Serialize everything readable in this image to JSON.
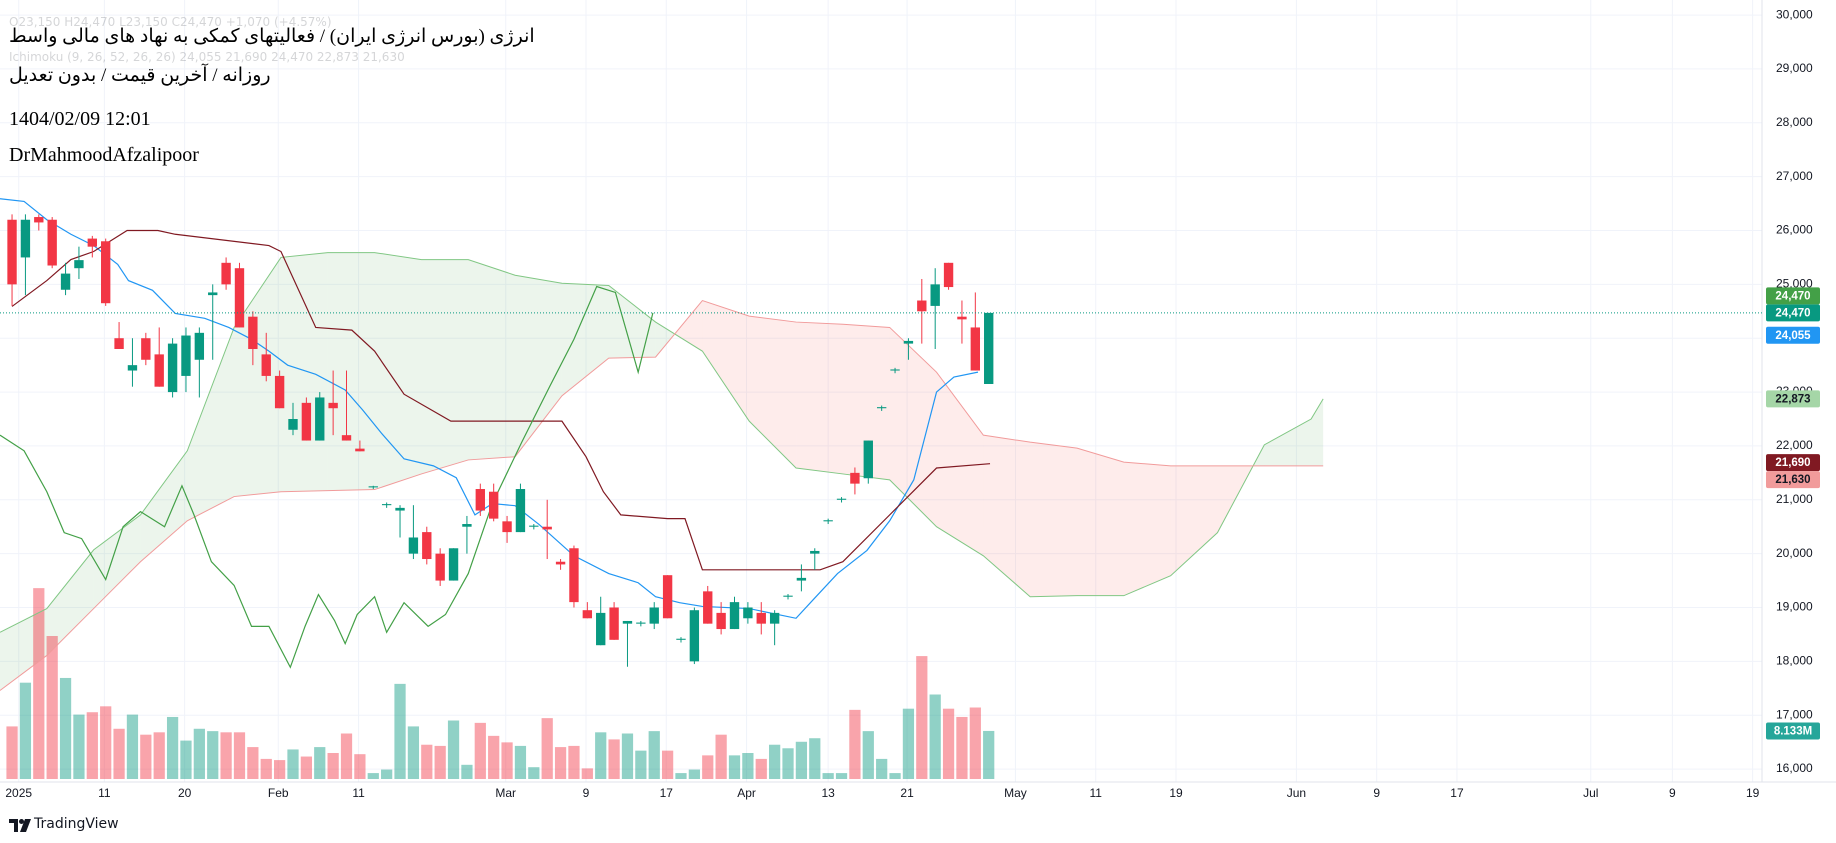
{
  "header": {
    "ghost_ohlc": "O23,150 H24,470 L23,150 C24,470 +1,070 (+4.57%)",
    "ghost_ichimoku": "Ichimoku (9, 26, 52, 26, 26) 24,055 21,690 24,470 22,873 21,630",
    "title": "انرژی (بورس انرژی ایران) / فعالیتهای کمکی به نهاد های مالی واسط",
    "subtitle": "روزانه / آخرین قیمت / بدون تعدیل",
    "datetime": "1404/02/09 12:01",
    "author": "DrMahmoodAfzalipoor"
  },
  "chart_data": {
    "type": "candlestick",
    "xlim": [
      -0.9,
      130.8
    ],
    "xticks": [
      {
        "value": 0.5,
        "label": "2025"
      },
      {
        "value": 6.9,
        "label": "11"
      },
      {
        "value": 12.9,
        "label": "20"
      },
      {
        "value": 19.9,
        "label": "Feb"
      },
      {
        "value": 25.9,
        "label": "11"
      },
      {
        "value": 36.9,
        "label": "Mar"
      },
      {
        "value": 42.9,
        "label": "9"
      },
      {
        "value": 48.9,
        "label": "17"
      },
      {
        "value": 54.9,
        "label": "Apr"
      },
      {
        "value": 61.0,
        "label": "13"
      },
      {
        "value": 66.9,
        "label": "21"
      },
      {
        "value": 75.0,
        "label": "May"
      },
      {
        "value": 81.0,
        "label": "11"
      },
      {
        "value": 87.0,
        "label": "19"
      },
      {
        "value": 96.0,
        "label": "Jun"
      },
      {
        "value": 102.0,
        "label": "9"
      },
      {
        "value": 108.0,
        "label": "17"
      },
      {
        "value": 118.0,
        "label": "Jul"
      },
      {
        "value": 124.1,
        "label": "9"
      },
      {
        "value": 130.1,
        "label": "19"
      }
    ],
    "ylim": [
      15760,
      30280
    ],
    "yticks": [
      {
        "value": 16000,
        "label": "16,000"
      },
      {
        "value": 17000,
        "label": "17,000"
      },
      {
        "value": 18000,
        "label": "18,000"
      },
      {
        "value": 19000,
        "label": "19,000"
      },
      {
        "value": 20000,
        "label": "20,000"
      },
      {
        "value": 21000,
        "label": "21,000"
      },
      {
        "value": 22000,
        "label": "22,000"
      },
      {
        "value": 23000,
        "label": "23,000"
      },
      {
        "value": 24000,
        "label": "24,000"
      },
      {
        "value": 25000,
        "label": "25,000"
      },
      {
        "value": 26000,
        "label": "26,000"
      },
      {
        "value": 27000,
        "label": "27,000"
      },
      {
        "value": 28000,
        "label": "28,000"
      },
      {
        "value": 29000,
        "label": "29,000"
      },
      {
        "value": 30000,
        "label": "30,000"
      }
    ],
    "grid": true,
    "candles": {
      "up_color": "#089981",
      "down_color": "#f23645",
      "open": [
        26200,
        25500,
        26250,
        26200,
        24900,
        25300,
        25850,
        25800,
        24000,
        23400,
        24000,
        23700,
        23000,
        23300,
        23600,
        24800,
        25400,
        25300,
        24400,
        23700,
        23300,
        22300,
        22800,
        22100,
        22800,
        22200,
        21950,
        21230,
        20900,
        20800,
        20000,
        20400,
        20000,
        19500,
        20500,
        21200,
        21150,
        20600,
        20400,
        20500,
        20500,
        19850,
        20100,
        18950,
        18300,
        19000,
        18700,
        18700,
        18700,
        19600,
        18400,
        18000,
        19300,
        18900,
        18600,
        18800,
        18900,
        18700,
        19200,
        19500,
        20000,
        20600,
        21000,
        21500,
        21400,
        22700,
        23400,
        23900,
        24700,
        24600,
        25400,
        24400,
        24200,
        23150
      ],
      "high": [
        26300,
        26300,
        26300,
        26250,
        25400,
        25700,
        25900,
        25850,
        24300,
        24000,
        24100,
        24200,
        24000,
        24200,
        24200,
        25000,
        25500,
        25400,
        24500,
        24100,
        23400,
        22800,
        22900,
        23000,
        23400,
        23400,
        22100,
        21260,
        20950,
        20900,
        20900,
        20500,
        20100,
        20100,
        20700,
        21300,
        21300,
        20700,
        21300,
        20550,
        21000,
        19900,
        20150,
        19100,
        19200,
        19100,
        18750,
        18750,
        19100,
        19600,
        18450,
        19000,
        19400,
        19100,
        19200,
        19100,
        19100,
        18950,
        19250,
        19800,
        20100,
        20650,
        21050,
        21600,
        22100,
        22750,
        23450,
        24000,
        25100,
        25300,
        25400,
        24700,
        24850,
        24470
      ],
      "low": [
        24600,
        24800,
        26000,
        25300,
        24800,
        25100,
        25500,
        24600,
        23800,
        23100,
        23500,
        23100,
        22900,
        23000,
        22900,
        23600,
        24900,
        24200,
        23500,
        23200,
        22700,
        22200,
        22100,
        22100,
        22200,
        22100,
        21900,
        21200,
        20850,
        20300,
        19900,
        19800,
        19400,
        19500,
        20000,
        20700,
        20600,
        20200,
        20400,
        20450,
        19900,
        19700,
        19000,
        18800,
        18300,
        18400,
        17900,
        18650,
        18600,
        18800,
        18350,
        17950,
        18700,
        18500,
        18600,
        18700,
        18500,
        18300,
        19150,
        19300,
        19700,
        20550,
        20950,
        21100,
        21300,
        22650,
        23350,
        23600,
        23900,
        23800,
        24900,
        23900,
        23400,
        23150
      ],
      "close": [
        25000,
        26200,
        26150,
        25350,
        25200,
        25450,
        25700,
        24650,
        23800,
        23500,
        23600,
        23100,
        23900,
        24050,
        24100,
        24850,
        25000,
        24200,
        23800,
        23300,
        22700,
        22500,
        22100,
        22900,
        22700,
        22100,
        21900,
        21250,
        20920,
        20850,
        20300,
        19900,
        19500,
        20100,
        20550,
        20800,
        20650,
        20400,
        21200,
        20520,
        20450,
        19800,
        19100,
        18800,
        18900,
        18400,
        18750,
        18720,
        19000,
        18800,
        18420,
        18950,
        18700,
        18600,
        19100,
        19000,
        18700,
        18900,
        19220,
        19550,
        20050,
        20620,
        21020,
        21300,
        22100,
        22720,
        23420,
        23950,
        24500,
        25000,
        24950,
        24350,
        23400,
        24470
      ]
    },
    "volume": {
      "ylim": [
        0,
        33
      ],
      "up_color": "rgba(8,153,129,0.45)",
      "down_color": "rgba(242,54,69,0.45)",
      "values": [
        8.9,
        16.3,
        32.3,
        24.2,
        17.1,
        10.9,
        11.3,
        12.3,
        8.5,
        10.9,
        7.5,
        7.9,
        10.5,
        6.5,
        8.5,
        8.1,
        7.9,
        7.9,
        5.4,
        3.4,
        3.2,
        5.0,
        3.8,
        5.4,
        4.4,
        7.7,
        4.2,
        1.0,
        1.6,
        16.1,
        8.9,
        5.8,
        5.6,
        9.9,
        2.4,
        9.5,
        7.3,
        6.2,
        5.6,
        2.0,
        10.3,
        5.4,
        5.6,
        1.8,
        7.9,
        6.7,
        7.7,
        4.8,
        8.1,
        4.8,
        1.0,
        1.6,
        4.0,
        7.5,
        4.0,
        4.4,
        3.4,
        5.8,
        5.2,
        6.3,
        6.9,
        1.0,
        1.0,
        11.7,
        8.1,
        3.4,
        1.0,
        11.9,
        20.8,
        14.3,
        11.9,
        10.5,
        12.1,
        8.133
      ]
    },
    "cloud": {
      "span_a_color": "#81c784",
      "span_b_color": "#f19b9b",
      "up_fill": "rgba(67,160,71,0.10)",
      "down_fill": "rgba(244,67,54,0.10)",
      "x": [
        -0.9,
        2.6,
        6.1,
        9.6,
        13.1,
        16.6,
        20.1,
        23.6,
        27.1,
        30.6,
        34.1,
        37.6,
        41.1,
        44.6,
        48.1,
        51.6,
        55.1,
        58.6,
        62.1,
        65.6,
        69.1,
        72.6,
        76.1,
        79.6,
        83.1,
        86.6,
        90.1,
        93.6,
        97.1,
        98
      ],
      "span_a": [
        18540,
        18980,
        20070,
        20720,
        21910,
        24200,
        25500,
        25590,
        25590,
        25460,
        25460,
        25170,
        25020,
        24980,
        24300,
        23760,
        22460,
        21590,
        21480,
        21370,
        20500,
        19960,
        19200,
        19220,
        19220,
        19590,
        20390,
        22020,
        22500,
        22873
      ],
      "span_b": [
        17460,
        18110,
        18980,
        19850,
        20610,
        21060,
        21150,
        21170,
        21190,
        21480,
        21740,
        21800,
        22930,
        23630,
        23650,
        24700,
        24410,
        24300,
        24260,
        24200,
        23370,
        22200,
        22070,
        21960,
        21700,
        21630,
        21630,
        21630,
        21630,
        21630
      ]
    },
    "lines": [
      {
        "color": "#2196f3",
        "x": [
          -0.9,
          0.9,
          2.6,
          4.4,
          6.1,
          7.9,
          8.7,
          10.5,
          12.2,
          14.4,
          16.2,
          17.9,
          19.2,
          20.6,
          22.7,
          24.9,
          26.2,
          27.6,
          29.3,
          31.5,
          33.2,
          34.6,
          35.9,
          37.6,
          39.4,
          42,
          44.6,
          46.8,
          48.1,
          49.9,
          51.6,
          55.1,
          58.6,
          59.9,
          61.7,
          63.9,
          65.6,
          67.4,
          69.1,
          70.4,
          72.2
        ],
        "values": [
          26590,
          26540,
          26200,
          25930,
          25720,
          25370,
          25070,
          24890,
          24460,
          24370,
          24200,
          23980,
          23760,
          23500,
          23330,
          23040,
          22670,
          22240,
          21760,
          21630,
          21410,
          20720,
          20930,
          20890,
          20540,
          19960,
          19630,
          19460,
          19200,
          19090,
          19020,
          18980,
          18800,
          19150,
          19630,
          20060,
          20610,
          21370,
          23000,
          23280,
          23370
        ]
      },
      {
        "color": "#801922",
        "x": [
          0,
          2.6,
          4.4,
          6.1,
          8.6,
          10.9,
          12.2,
          19.2,
          20.1,
          22.7,
          25.4,
          27.1,
          29.3,
          32.8,
          37.6,
          41.1,
          42.9,
          44.2,
          45.5,
          49,
          50.3,
          51.6,
          60.4,
          62.1,
          65.6,
          69.1,
          73.1
        ],
        "values": [
          24590,
          25070,
          25460,
          25610,
          26000,
          26000,
          25930,
          25720,
          25610,
          24200,
          24150,
          23760,
          22960,
          22460,
          22460,
          22460,
          21800,
          21150,
          20720,
          20650,
          20650,
          19700,
          19700,
          19850,
          20720,
          21590,
          21670
        ]
      },
      {
        "color": "#43a047",
        "x": [
          -0.9,
          0.9,
          2.6,
          3.9,
          5.2,
          7,
          8.3,
          9.6,
          11.4,
          12.7,
          13.6,
          14.9,
          16.6,
          17.9,
          19.2,
          20.8,
          21.9,
          22.9,
          24.1,
          24.9,
          25.8,
          27.1,
          28,
          29.3,
          31.1,
          32.4,
          34.1,
          35.9,
          38.1,
          40.2,
          42,
          43.7,
          45.1,
          46.8,
          47.9
        ],
        "values": [
          22200,
          21910,
          21150,
          20390,
          20280,
          19520,
          20500,
          20780,
          20500,
          21260,
          20720,
          19850,
          19410,
          18650,
          18650,
          17890,
          18650,
          19240,
          18760,
          18330,
          18870,
          19200,
          18540,
          19090,
          18650,
          18870,
          19630,
          20930,
          22070,
          23110,
          23980,
          24960,
          24850,
          23370,
          24470
        ]
      }
    ],
    "price_labels": [
      {
        "value": 24470,
        "label": "24,470",
        "color": "#089981",
        "text_color": "#ffffff"
      },
      {
        "value": 24055,
        "label": "24,055",
        "color": "#2196f3",
        "text_color": "#ffffff"
      },
      {
        "value": 24470,
        "label": "24,470",
        "color": "#43a047",
        "text_color": "#ffffff"
      },
      {
        "value": 22873,
        "label": "22,873",
        "color": "#a5d6a7",
        "text_color": "#131722"
      },
      {
        "value": 21690,
        "label": "21,690",
        "color": "#801922",
        "text_color": "#ffffff"
      },
      {
        "value": 21630,
        "label": "21,630",
        "color": "#f19b9b",
        "text_color": "#131722"
      },
      {
        "value": 8.133,
        "label": "8.133M",
        "color": "#26a69a",
        "text_color": "#ffffff",
        "axis": "volume"
      }
    ]
  },
  "footer": {
    "brand": "TradingView"
  }
}
